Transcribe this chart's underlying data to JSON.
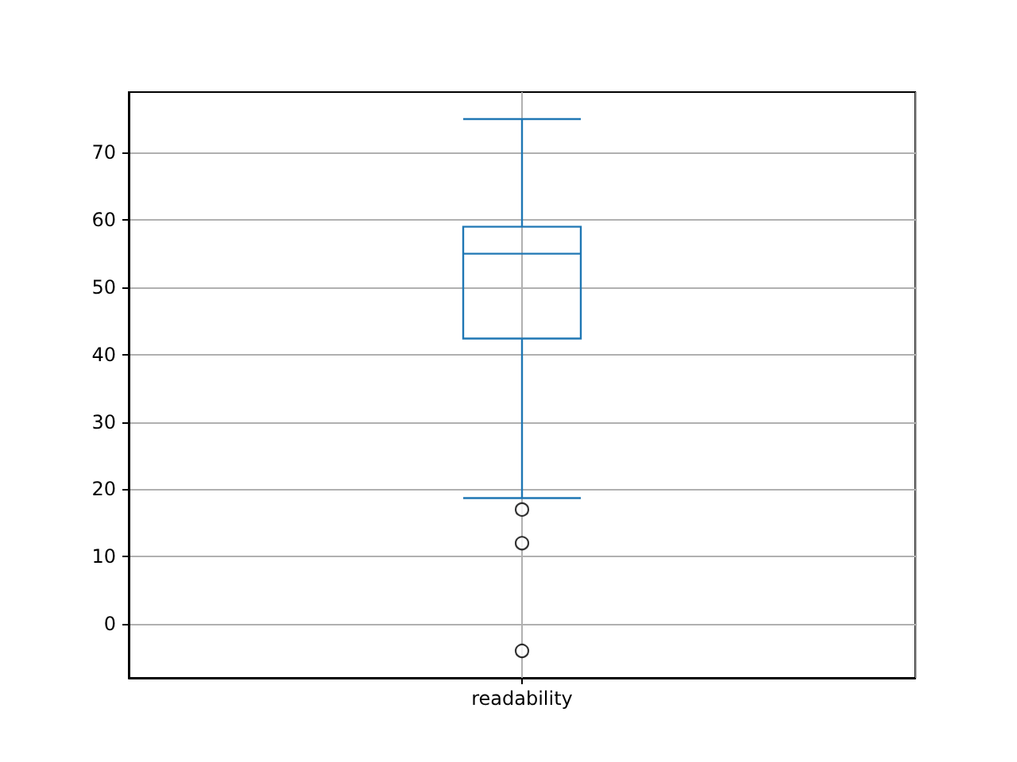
{
  "chart_data": {
    "type": "box",
    "categories": [
      "readability"
    ],
    "boxes": [
      {
        "low": 18.7,
        "q1": 42.4,
        "median": 55,
        "q3": 59,
        "high": 75,
        "outliers": [
          17,
          12,
          -4
        ]
      }
    ],
    "color": "#1f77b4",
    "marker": "circle",
    "ylim": [
      -8,
      79
    ],
    "yticks": [
      0,
      10,
      20,
      30,
      40,
      50,
      60,
      70
    ],
    "grid": true
  }
}
